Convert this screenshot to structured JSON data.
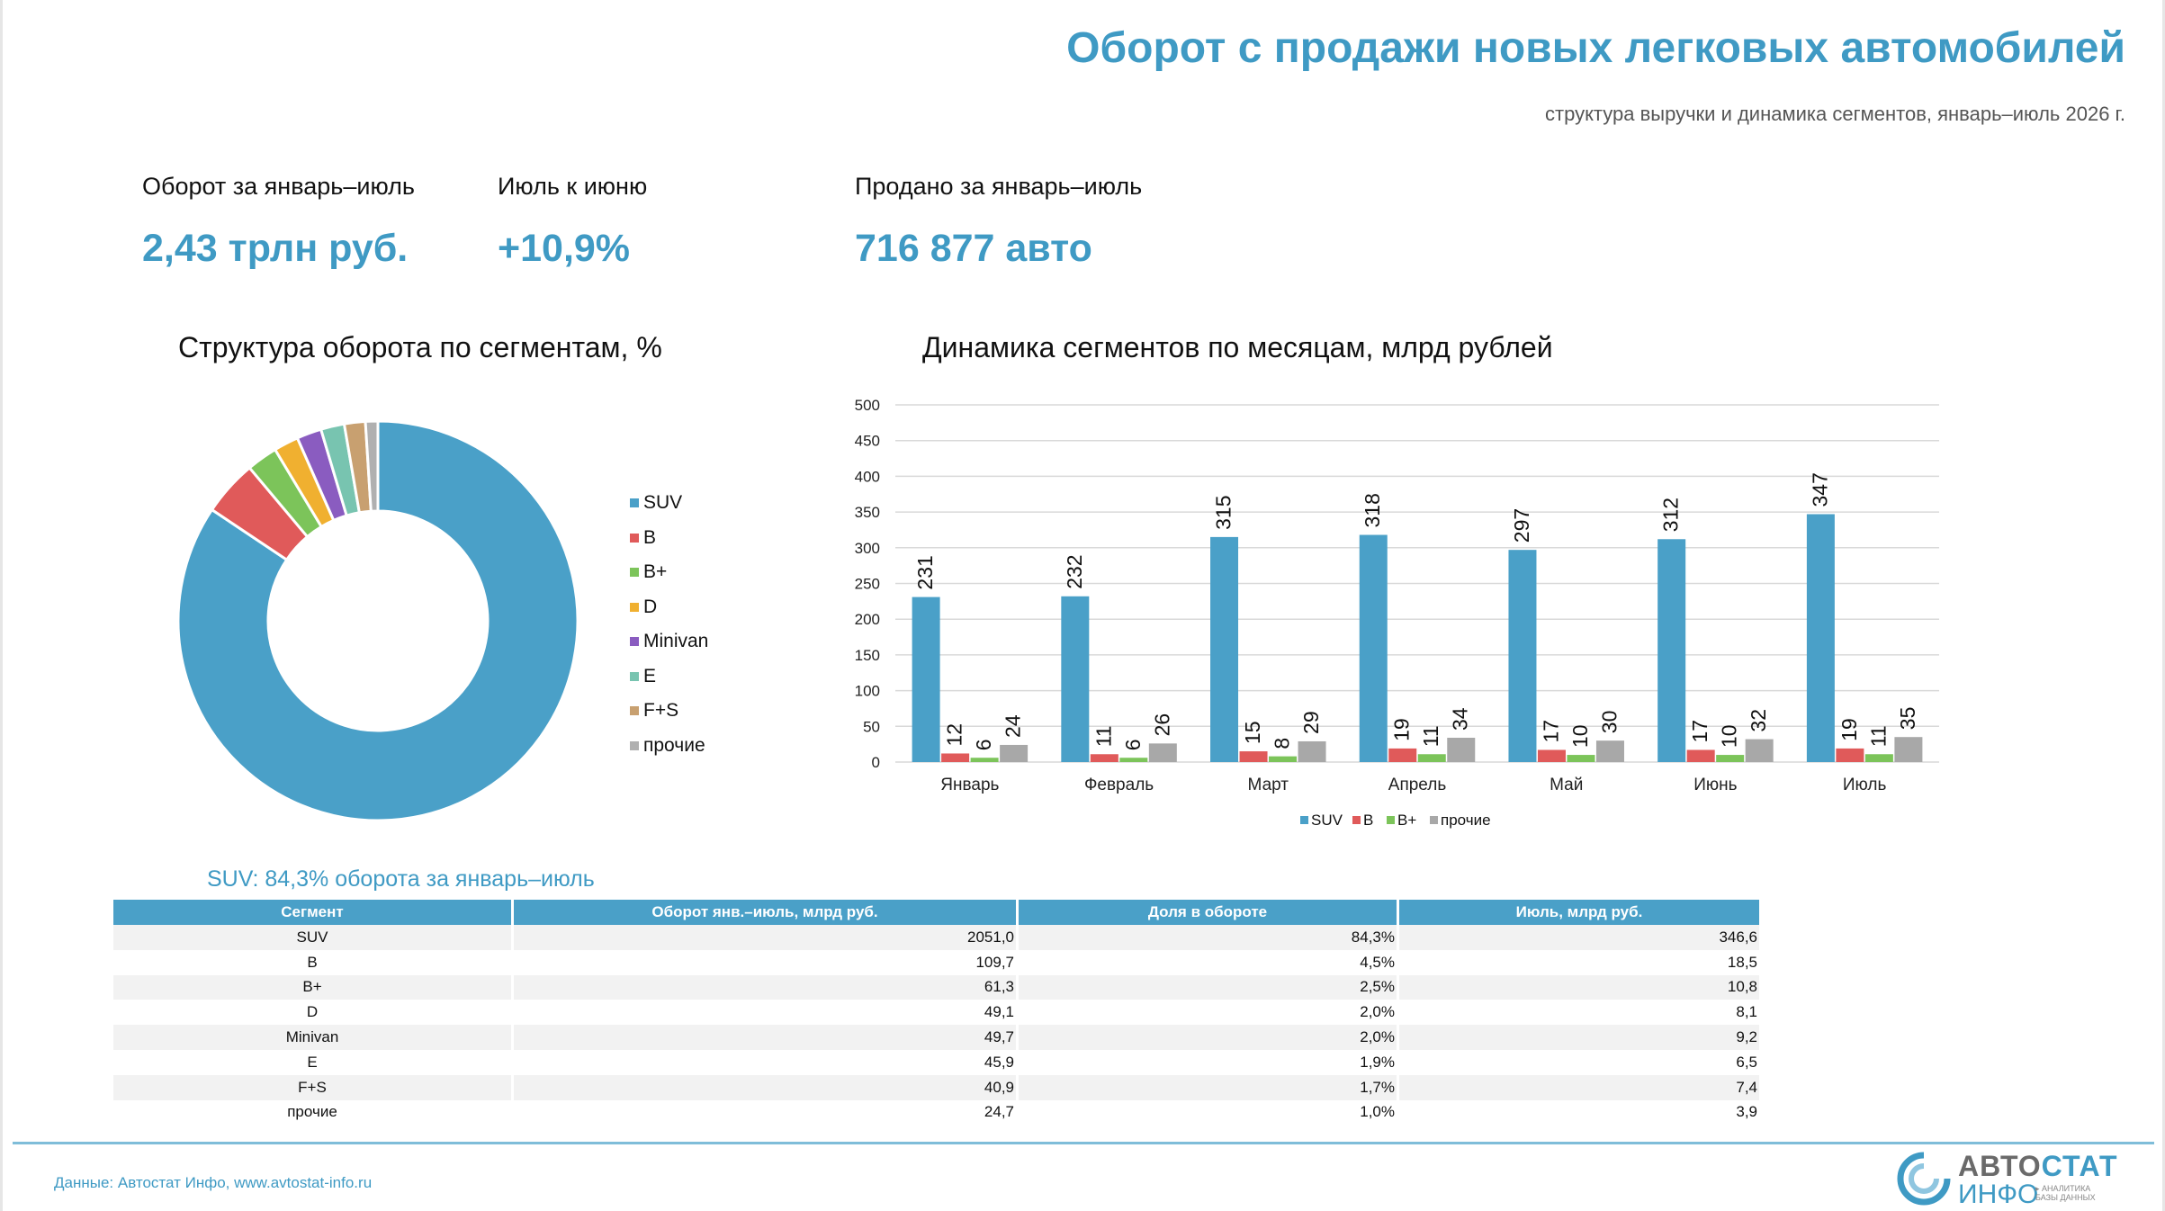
{
  "header": {
    "title": "Оборот с продажи новых легковых автомобилей",
    "subtitle": "структура выручки и динамика сегментов, январь–июль 2026 г."
  },
  "kpis": [
    {
      "label": "Оборот за январь–июль",
      "value": "2,43 трлн руб."
    },
    {
      "label": "Июль к июню",
      "value": "+10,9%"
    },
    {
      "label": "Продано за январь–июль",
      "value": "716 877 авто"
    }
  ],
  "chart_data": [
    {
      "type": "pie",
      "title": "Структура оборота по сегментам, %",
      "categories": [
        "SUV",
        "B",
        "B+",
        "D",
        "Minivan",
        "E",
        "F+S",
        "прочие"
      ],
      "values": [
        84.3,
        4.5,
        2.5,
        2.0,
        2.0,
        1.9,
        1.7,
        1.0
      ],
      "colors": [
        "#4aa0c8",
        "#e05a5a",
        "#7cc45a",
        "#f0b030",
        "#8a5cc0",
        "#78c4b0",
        "#c8a070",
        "#b0b0b0"
      ],
      "donut": true,
      "legend": "right"
    },
    {
      "type": "bar",
      "title": "Динамика сегментов по месяцам, млрд рублей",
      "categories": [
        "Январь",
        "Февраль",
        "Март",
        "Апрель",
        "Май",
        "Июнь",
        "Июль"
      ],
      "series": [
        {
          "name": "SUV",
          "values": [
            231,
            232,
            315,
            318,
            297,
            312,
            347
          ],
          "color": "#4aa0c8"
        },
        {
          "name": "B",
          "values": [
            12,
            11,
            15,
            19,
            17,
            17,
            19
          ],
          "color": "#e05a5a"
        },
        {
          "name": "B+",
          "values": [
            6,
            6,
            8,
            11,
            10,
            10,
            11
          ],
          "color": "#7cc45a"
        },
        {
          "name": "прочие",
          "values": [
            24,
            26,
            29,
            34,
            30,
            32,
            35
          ],
          "color": "#a8a8a8"
        }
      ],
      "ylim": [
        0,
        500
      ],
      "yticks": [
        0,
        50,
        100,
        150,
        200,
        250,
        300,
        350,
        400,
        450,
        500
      ],
      "grid": true,
      "legend": "bottom"
    }
  ],
  "table": {
    "caption": "SUV: 84,3% оборота за январь–июль",
    "headers": [
      "Сегмент",
      "Оборот янв.–июль, млрд руб.",
      "Доля в обороте",
      "Июль, млрд руб."
    ],
    "rows": [
      [
        "SUV",
        "2051,0",
        "84,3%",
        "346,6"
      ],
      [
        "B",
        "109,7",
        "4,5%",
        "18,5"
      ],
      [
        "B+",
        "61,3",
        "2,5%",
        "10,8"
      ],
      [
        "D",
        "49,1",
        "2,0%",
        "8,1"
      ],
      [
        "Minivan",
        "49,7",
        "2,0%",
        "9,2"
      ],
      [
        "E",
        "45,9",
        "1,9%",
        "6,5"
      ],
      [
        "F+S",
        "40,9",
        "1,7%",
        "7,4"
      ],
      [
        "прочие",
        "24,7",
        "1,0%",
        "3,9"
      ]
    ]
  },
  "footer": {
    "source": "Данные: Автостат Инфо, www.avtostat-info.ru",
    "logo_top_a": "АВТО",
    "logo_top_b": "СТАТ",
    "logo_bottom": "ИНФО",
    "logo_tag": "▸ АНАЛИТИКА БАЗЫ ДАННЫХ"
  }
}
